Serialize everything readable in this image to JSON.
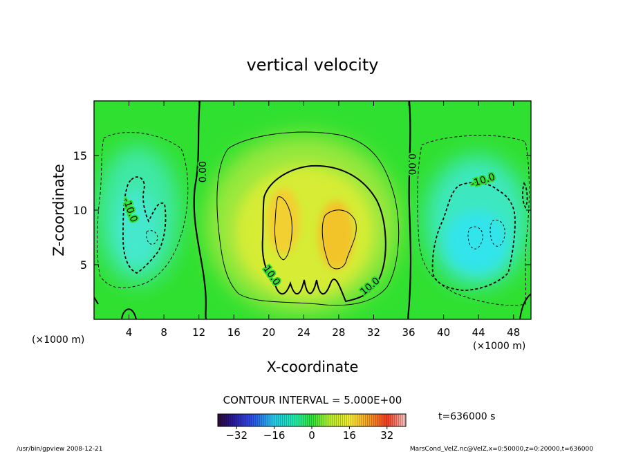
{
  "chart_data": {
    "type": "heatmap",
    "title": "vertical velocity",
    "xlabel": "X-coordinate",
    "ylabel": "Z-coordinate",
    "x_unit_left": "(×1000 m)",
    "x_unit_right": "(×1000 m)",
    "xlim": [
      0,
      50
    ],
    "ylim": [
      0,
      20
    ],
    "x_ticks": [
      4,
      8,
      12,
      16,
      20,
      24,
      28,
      32,
      36,
      40,
      44,
      48
    ],
    "y_ticks": [
      5,
      10,
      15
    ],
    "contour_interval_text": "CONTOUR INTERVAL = 5.000E+00",
    "time_text": "t=636000 s",
    "colorbar": {
      "range": [
        -40,
        40
      ],
      "ticks": [
        -32,
        -16,
        0,
        16,
        32
      ]
    },
    "contour_labels": [
      {
        "text": "0.00",
        "x": 12.5,
        "y": 13.5,
        "rotate": -90
      },
      {
        "text": "0.00",
        "x": 36.3,
        "y": 14.2,
        "rotate": 90
      },
      {
        "text": "-10.0",
        "x": 4.1,
        "y": 10.0,
        "rotate": 70
      },
      {
        "text": "-10.0",
        "x": 44.5,
        "y": 12.7,
        "rotate": -18
      },
      {
        "text": "10.0",
        "x": 20.3,
        "y": 4.0,
        "rotate": 55
      },
      {
        "text": "10.0",
        "x": 31.6,
        "y": 3.0,
        "rotate": -40
      }
    ],
    "features": [
      {
        "type": "updraft",
        "x_range": [
          19,
          34
        ],
        "z_range": [
          2,
          14
        ],
        "max_approx": 16
      },
      {
        "type": "downdraft",
        "x_range": [
          1,
          10
        ],
        "z_range": [
          4,
          13
        ],
        "min_approx": -15
      },
      {
        "type": "downdraft",
        "x_range": [
          38,
          49
        ],
        "z_range": [
          3,
          13
        ],
        "min_approx": -17
      }
    ]
  },
  "footer": {
    "left": "/usr/bin/gpview   2008-12-21",
    "right": "MarsCond_VelZ.nc@VelZ,x=0:50000,z=0:20000,t=636000"
  }
}
